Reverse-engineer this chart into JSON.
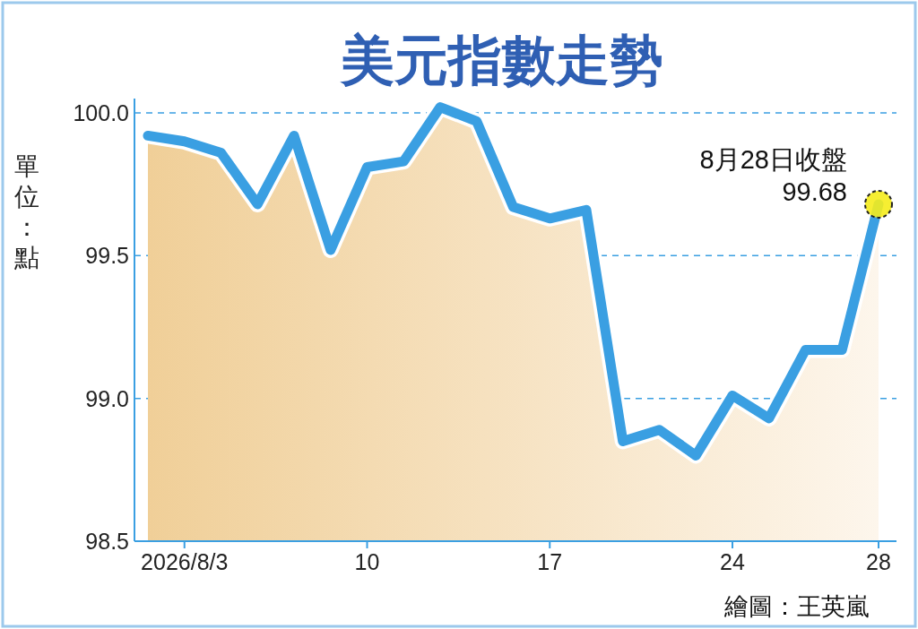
{
  "chart_data": {
    "type": "area",
    "title": "美元指數走勢",
    "ylabel": "單位：點",
    "categories": [
      null,
      "2026/8/3",
      null,
      null,
      null,
      null,
      "10",
      null,
      null,
      null,
      null,
      "17",
      null,
      null,
      null,
      null,
      "24",
      null,
      null,
      null,
      "28"
    ],
    "series": [
      {
        "color": "#3a9fe2",
        "values": [
          99.92,
          99.9,
          99.86,
          99.68,
          99.92,
          99.52,
          99.81,
          99.83,
          100.02,
          99.97,
          99.67,
          99.63,
          99.66,
          98.85,
          98.89,
          98.8,
          99.01,
          98.93,
          99.17,
          99.17,
          99.68
        ]
      },
      {
        "type": "scatter",
        "color": "#f5ec1c",
        "marker": "circle",
        "values": [
          null,
          null,
          null,
          null,
          null,
          null,
          null,
          null,
          null,
          null,
          null,
          null,
          null,
          null,
          null,
          null,
          null,
          null,
          null,
          null,
          99.68
        ]
      }
    ],
    "ylim": [
      98.5,
      100.05
    ],
    "yticks": [
      98.5,
      {
        "value": 99,
        "label": "99.0"
      },
      99.5,
      {
        "value": 100,
        "label": "100.0"
      }
    ],
    "grid": "y",
    "annotations": [
      {
        "text": "8月28日收盤\n99.68",
        "x": "28",
        "y": 99.68
      },
      "繪圖：王英嵐"
    ]
  }
}
